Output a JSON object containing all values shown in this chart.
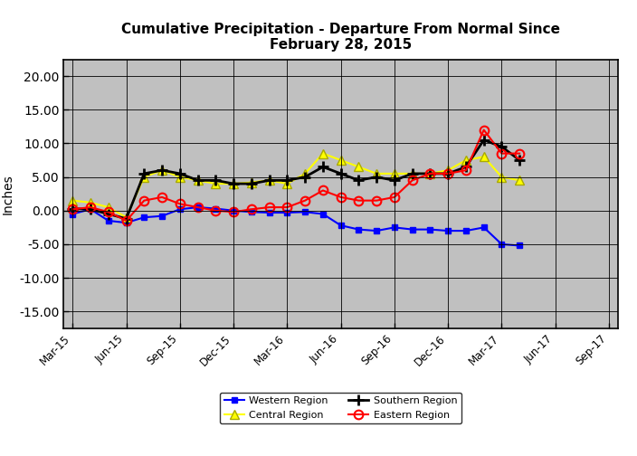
{
  "title": "Cumulative Precipitation - Departure From Normal Since\nFebruary 28, 2015",
  "ylabel": "Inches",
  "ylim": [
    -17.5,
    22.5
  ],
  "yticks": [
    -15.0,
    -10.0,
    -5.0,
    0.0,
    5.0,
    10.0,
    15.0,
    20.0
  ],
  "background_color": "#c0c0c0",
  "x_labels": [
    "Mar-15",
    "Jun-15",
    "Sep-15",
    "Dec-15",
    "Mar-16",
    "Jun-16",
    "Sep-16",
    "Dec-16",
    "Mar-17",
    "Jun-17",
    "Sep-17"
  ],
  "n_ticks": 11,
  "tick_step": 3,
  "xlim": [
    -0.5,
    30.5
  ],
  "western_region": {
    "label": "Western Region",
    "color": "#0000ff",
    "marker": "s",
    "markersize": 5,
    "linewidth": 1.5,
    "x": [
      0,
      1,
      2,
      3,
      4,
      5,
      6,
      7,
      8,
      9,
      10,
      11,
      12,
      13,
      14,
      15,
      16,
      17,
      18,
      19,
      20,
      21,
      22,
      23,
      24,
      25
    ],
    "y": [
      -0.5,
      0.2,
      -1.5,
      -1.8,
      -1.0,
      -0.8,
      0.2,
      0.5,
      0.3,
      0.0,
      -0.2,
      -0.3,
      -0.3,
      -0.2,
      -0.5,
      -2.2,
      -2.8,
      -3.0,
      -2.5,
      -2.8,
      -2.8,
      -3.0,
      -3.0,
      -2.5,
      -5.0,
      -5.2
    ]
  },
  "central_region": {
    "label": "Central Region",
    "color": "#ffff00",
    "marker": "^",
    "markersize": 7,
    "linewidth": 1.5,
    "x": [
      0,
      1,
      2,
      3,
      4,
      5,
      6,
      7,
      8,
      9,
      10,
      11,
      12,
      13,
      14,
      15,
      16,
      17,
      18,
      19,
      20,
      21,
      22,
      23,
      24,
      25
    ],
    "y": [
      1.5,
      1.2,
      0.5,
      -1.0,
      5.0,
      6.0,
      5.0,
      4.5,
      4.0,
      4.0,
      4.2,
      4.5,
      4.0,
      5.5,
      8.5,
      7.5,
      6.5,
      5.5,
      5.5,
      5.5,
      5.5,
      6.0,
      7.5,
      8.0,
      5.0,
      4.5
    ]
  },
  "southern_region": {
    "label": "Southern Region",
    "color": "#000000",
    "marker": "+",
    "markersize": 9,
    "markeredgewidth": 2.0,
    "linewidth": 2.0,
    "x": [
      0,
      1,
      2,
      3,
      4,
      5,
      6,
      7,
      8,
      9,
      10,
      11,
      12,
      13,
      14,
      15,
      16,
      17,
      18,
      19,
      20,
      21,
      22,
      23,
      24,
      25
    ],
    "y": [
      0.3,
      0.2,
      -0.5,
      -1.2,
      5.5,
      6.0,
      5.5,
      4.5,
      4.5,
      4.0,
      4.0,
      4.5,
      4.5,
      5.0,
      6.5,
      5.5,
      4.5,
      5.0,
      4.5,
      5.5,
      5.5,
      5.5,
      6.5,
      10.5,
      9.5,
      7.5
    ]
  },
  "eastern_region": {
    "label": "Eastern Region",
    "color": "#ff0000",
    "marker": "o",
    "markersize": 7,
    "linewidth": 1.5,
    "x": [
      0,
      1,
      2,
      3,
      4,
      5,
      6,
      7,
      8,
      9,
      10,
      11,
      12,
      13,
      14,
      15,
      16,
      17,
      18,
      19,
      20,
      21,
      22,
      23,
      24,
      25
    ],
    "y": [
      0.2,
      0.5,
      -0.2,
      -1.5,
      1.5,
      2.0,
      1.0,
      0.5,
      0.0,
      -0.2,
      0.2,
      0.5,
      0.5,
      1.5,
      3.0,
      2.0,
      1.5,
      1.5,
      2.0,
      4.5,
      5.5,
      5.5,
      6.0,
      12.0,
      8.5,
      8.5
    ]
  },
  "legend_labels_row1": [
    "Western Region",
    "Central Region"
  ],
  "legend_labels_row2": [
    "Southern Region",
    "Eastern Region"
  ]
}
